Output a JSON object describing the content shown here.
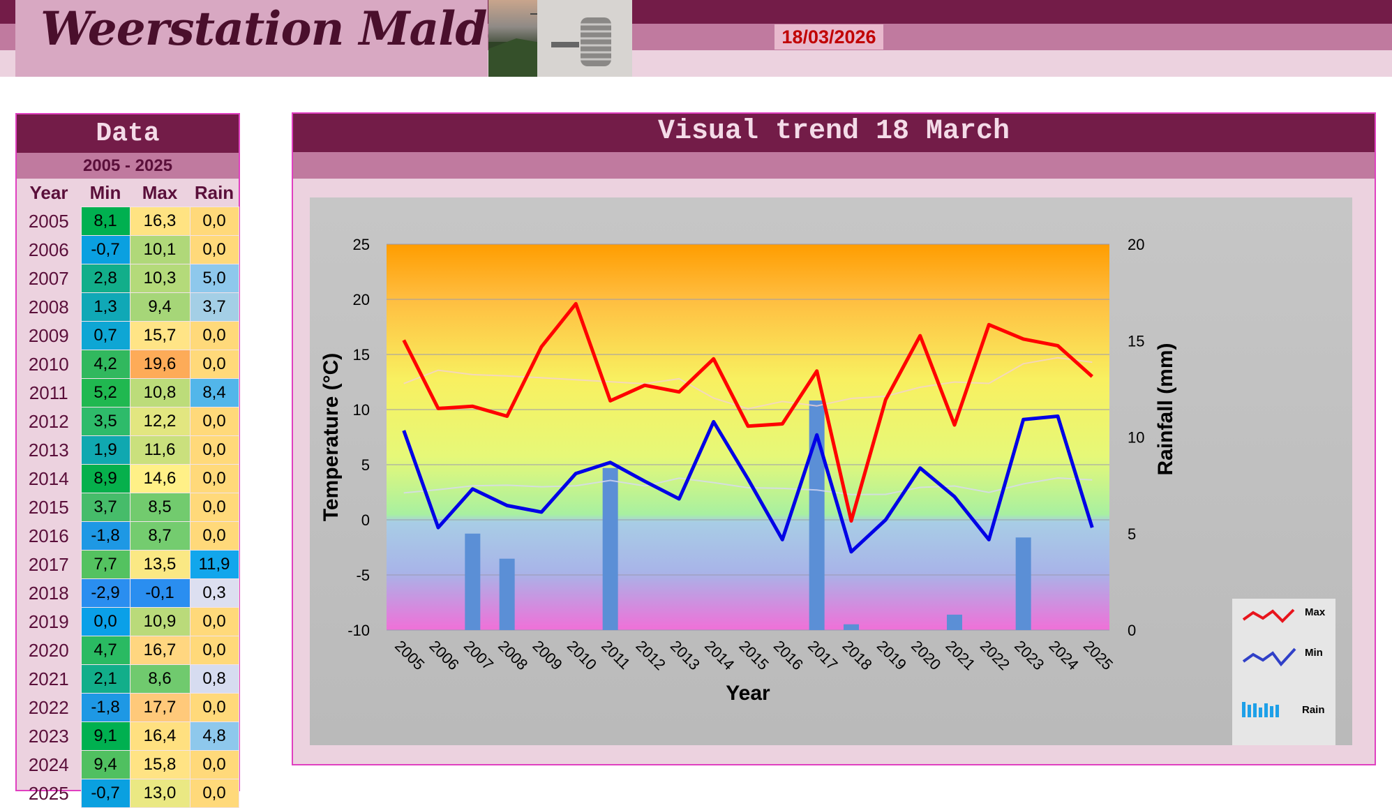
{
  "header": {
    "site_title": "Weerstation Malderen",
    "date": "18/03/2026"
  },
  "data_table": {
    "title": "Data",
    "range": "2005 - 2025",
    "columns": [
      "Year",
      "Min",
      "Max",
      "Rain"
    ],
    "rows": [
      {
        "year": "2005",
        "min": "8,1",
        "max": "16,3",
        "rain": "0,0"
      },
      {
        "year": "2006",
        "min": "-0,7",
        "max": "10,1",
        "rain": "0,0"
      },
      {
        "year": "2007",
        "min": "2,8",
        "max": "10,3",
        "rain": "5,0"
      },
      {
        "year": "2008",
        "min": "1,3",
        "max": "9,4",
        "rain": "3,7"
      },
      {
        "year": "2009",
        "min": "0,7",
        "max": "15,7",
        "rain": "0,0"
      },
      {
        "year": "2010",
        "min": "4,2",
        "max": "19,6",
        "rain": "0,0"
      },
      {
        "year": "2011",
        "min": "5,2",
        "max": "10,8",
        "rain": "8,4"
      },
      {
        "year": "2012",
        "min": "3,5",
        "max": "12,2",
        "rain": "0,0"
      },
      {
        "year": "2013",
        "min": "1,9",
        "max": "11,6",
        "rain": "0,0"
      },
      {
        "year": "2014",
        "min": "8,9",
        "max": "14,6",
        "rain": "0,0"
      },
      {
        "year": "2015",
        "min": "3,7",
        "max": "8,5",
        "rain": "0,0"
      },
      {
        "year": "2016",
        "min": "-1,8",
        "max": "8,7",
        "rain": "0,0"
      },
      {
        "year": "2017",
        "min": "7,7",
        "max": "13,5",
        "rain": "11,9"
      },
      {
        "year": "2018",
        "min": "-2,9",
        "max": "-0,1",
        "rain": "0,3"
      },
      {
        "year": "2019",
        "min": "0,0",
        "max": "10,9",
        "rain": "0,0"
      },
      {
        "year": "2020",
        "min": "4,7",
        "max": "16,7",
        "rain": "0,0"
      },
      {
        "year": "2021",
        "min": "2,1",
        "max": "8,6",
        "rain": "0,8"
      },
      {
        "year": "2022",
        "min": "-1,8",
        "max": "17,7",
        "rain": "0,0"
      },
      {
        "year": "2023",
        "min": "9,1",
        "max": "16,4",
        "rain": "4,8"
      },
      {
        "year": "2024",
        "min": "9,4",
        "max": "15,8",
        "rain": "0,0"
      },
      {
        "year": "2025",
        "min": "-0,7",
        "max": "13,0",
        "rain": "0,0"
      }
    ]
  },
  "chart_panel": {
    "title": "Visual  trend 18 March"
  },
  "chart_data": {
    "type": "line",
    "xlabel": "Year",
    "ylabel": "Temperature (°C)",
    "y2label": "Rainfall (mm)",
    "ylim": [
      -10,
      25
    ],
    "y2lim": [
      0,
      20
    ],
    "yticks": [
      "25",
      "20",
      "15",
      "10",
      "5",
      "0",
      "-5",
      "-10"
    ],
    "y2ticks": [
      "20",
      "15",
      "10",
      "5",
      "0"
    ],
    "x": [
      "2005",
      "2006",
      "2007",
      "2008",
      "2009",
      "2010",
      "2011",
      "2012",
      "2013",
      "2014",
      "2015",
      "2016",
      "2017",
      "2018",
      "2019",
      "2020",
      "2021",
      "2022",
      "2023",
      "2024",
      "2025"
    ],
    "series": [
      {
        "name": "Max",
        "type": "line",
        "axis": "left",
        "color": "#ff0000",
        "values": [
          16.3,
          10.1,
          10.3,
          9.4,
          15.7,
          19.6,
          10.8,
          12.2,
          11.6,
          14.6,
          8.5,
          8.7,
          13.5,
          -0.1,
          10.9,
          16.7,
          8.6,
          17.7,
          16.4,
          15.8,
          13.0
        ]
      },
      {
        "name": "Min",
        "type": "line",
        "axis": "left",
        "color": "#0000e6",
        "values": [
          8.1,
          -0.7,
          2.8,
          1.3,
          0.7,
          4.2,
          5.2,
          3.5,
          1.9,
          8.9,
          3.7,
          -1.8,
          7.7,
          -2.9,
          0.0,
          4.7,
          2.1,
          -1.8,
          9.1,
          9.4,
          -0.7
        ]
      },
      {
        "name": "Rain",
        "type": "bar",
        "axis": "right",
        "color": "#5b8fd6",
        "values": [
          0.0,
          0.0,
          5.0,
          3.7,
          0.0,
          0.0,
          8.4,
          0.0,
          0.0,
          0.0,
          0.0,
          0.0,
          11.9,
          0.3,
          0.0,
          0.0,
          0.8,
          0.0,
          4.8,
          0.0,
          0.0
        ]
      }
    ],
    "legend": {
      "position": "right",
      "entries": [
        "Max",
        "Min",
        "Rain"
      ]
    },
    "grid": true,
    "trendlines": true
  }
}
